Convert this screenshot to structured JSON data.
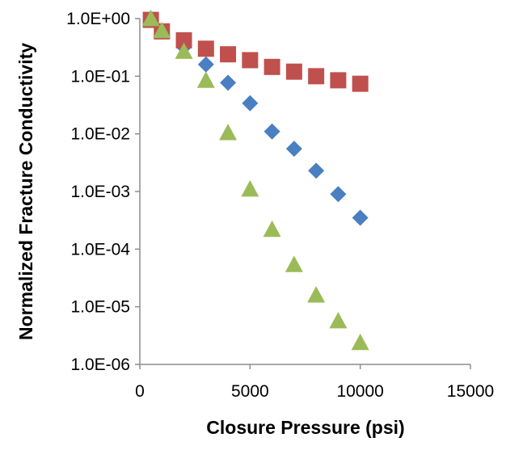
{
  "chart_data": {
    "type": "scatter",
    "title": "",
    "xlabel": "Closure Pressure (psi)",
    "ylabel": "Normalized Fracture Conductivity",
    "xlim": [
      0,
      15000
    ],
    "ylim": [
      1e-06,
      1
    ],
    "y_scale": "log",
    "grid": false,
    "legend": "none",
    "x_ticks": [
      "0",
      "5000",
      "10000",
      "15000"
    ],
    "y_ticks": [
      "1.0E-06",
      "1.0E-05",
      "1.0E-04",
      "1.0E-03",
      "1.0E-02",
      "1.0E-01",
      "1.0E+00"
    ],
    "series": [
      {
        "marker": "diamond",
        "color": "#4a7fc1",
        "points": [
          {
            "x": 500,
            "y": 1.0
          },
          {
            "x": 1000,
            "y": 0.6
          },
          {
            "x": 2000,
            "y": 0.32
          },
          {
            "x": 3000,
            "y": 0.16
          },
          {
            "x": 4000,
            "y": 0.077
          },
          {
            "x": 5000,
            "y": 0.034
          },
          {
            "x": 6000,
            "y": 0.011
          },
          {
            "x": 7000,
            "y": 0.0055
          },
          {
            "x": 8000,
            "y": 0.0023
          },
          {
            "x": 9000,
            "y": 0.0009
          },
          {
            "x": 10000,
            "y": 0.00035
          }
        ]
      },
      {
        "marker": "square",
        "color": "#c0504d",
        "points": [
          {
            "x": 500,
            "y": 0.95
          },
          {
            "x": 1000,
            "y": 0.6
          },
          {
            "x": 2000,
            "y": 0.42
          },
          {
            "x": 3000,
            "y": 0.3
          },
          {
            "x": 4000,
            "y": 0.24
          },
          {
            "x": 5000,
            "y": 0.19
          },
          {
            "x": 6000,
            "y": 0.145
          },
          {
            "x": 7000,
            "y": 0.12
          },
          {
            "x": 8000,
            "y": 0.1
          },
          {
            "x": 9000,
            "y": 0.085
          },
          {
            "x": 10000,
            "y": 0.074
          }
        ]
      },
      {
        "marker": "triangle",
        "color": "#9bbb59",
        "points": [
          {
            "x": 500,
            "y": 1.0
          },
          {
            "x": 1000,
            "y": 0.62
          },
          {
            "x": 2000,
            "y": 0.27
          },
          {
            "x": 3000,
            "y": 0.085
          },
          {
            "x": 4000,
            "y": 0.0105
          },
          {
            "x": 5000,
            "y": 0.0011
          },
          {
            "x": 6000,
            "y": 0.00022
          },
          {
            "x": 7000,
            "y": 5.4e-05
          },
          {
            "x": 8000,
            "y": 1.6e-05
          },
          {
            "x": 9000,
            "y": 5.7e-06
          },
          {
            "x": 10000,
            "y": 2.4e-06
          }
        ]
      }
    ]
  }
}
